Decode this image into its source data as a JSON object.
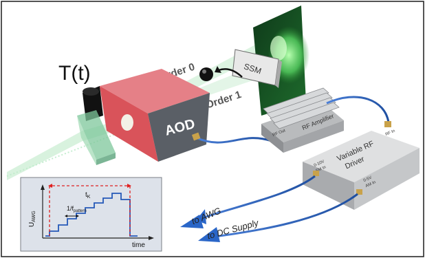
{
  "labels": {
    "tt": "T(t)",
    "aod": "AOD",
    "ssm": "SSM",
    "order0": "Order 0",
    "order1": "Order 1",
    "rf_amplifier": "RF Amplifier",
    "rf_out": "RF Out",
    "rf_in": "RF In",
    "driver_title_line1": "Variable RF",
    "driver_title_line2": "Driver",
    "port_left_line1": "0-10V",
    "port_left_line2": "FM In",
    "port_right_line1": "0-5V",
    "port_right_line2": "AM In",
    "to_awg": "to AWG",
    "to_dc": "to DC Supply"
  },
  "inset": {
    "y_label_main": "U",
    "y_label_sub": "AWG",
    "x_label": "time",
    "period_label": "t",
    "period_label_sub": "K",
    "pattern_label": "1/f",
    "pattern_label_sub": "pattern"
  },
  "colors": {
    "aod_red": "#d9535a",
    "beam_green": "#8fd9a0",
    "cable_blue": "#1f4fa0",
    "arrow_blue": "#2a66c8",
    "metal_grey": "#c9cbcd",
    "inset_bg": "#dde2ea",
    "trace_blue": "#2458b8",
    "dash_red": "#e02020"
  }
}
